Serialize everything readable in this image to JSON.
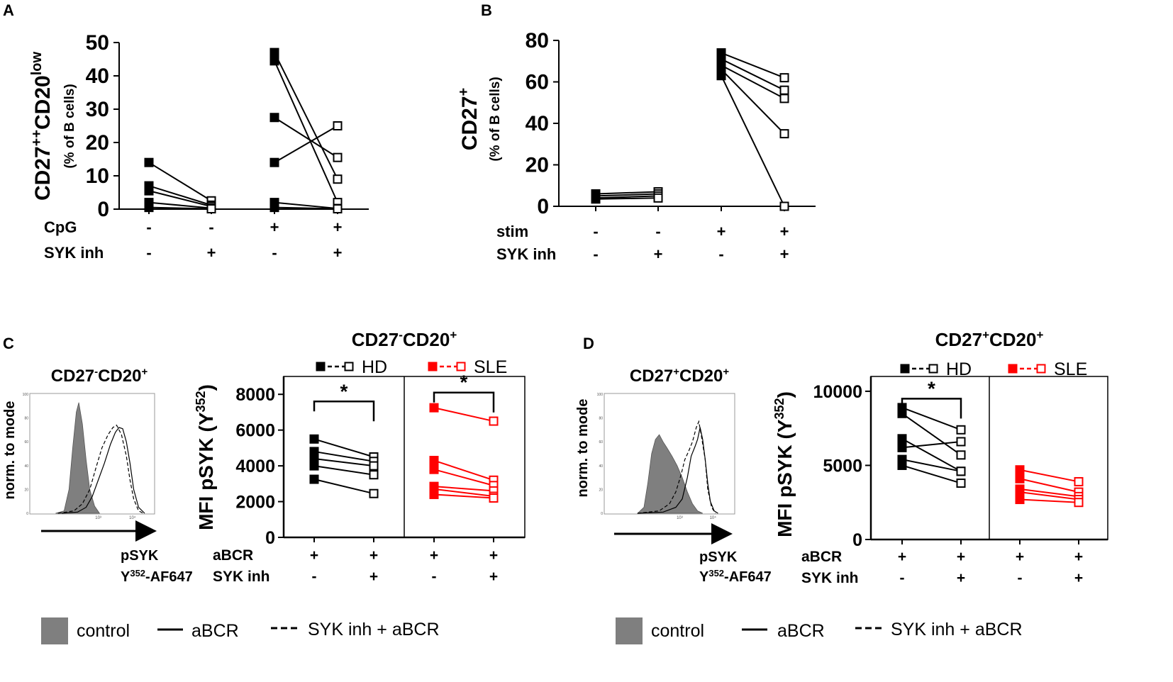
{
  "panels": {
    "A": {
      "letter": "A"
    },
    "B": {
      "letter": "B"
    },
    "C": {
      "letter": "C"
    },
    "D": {
      "letter": "D"
    }
  },
  "chart_data": [
    {
      "id": "A",
      "type": "scatter",
      "title": "",
      "ylabel_main": "CD27",
      "ylabel_sup1": "++",
      "ylabel_mid": "CD20",
      "ylabel_sup2": "low",
      "ylabel_sub": "(% of B cells)",
      "ylim": [
        0,
        50
      ],
      "yticks": [
        "0",
        "10",
        "20",
        "30",
        "40",
        "50"
      ],
      "conditions": [
        {
          "name": "CpG",
          "values": [
            "-",
            "-",
            "+",
            "+"
          ]
        },
        {
          "name": "SYK inh",
          "values": [
            "-",
            "+",
            "-",
            "+"
          ]
        }
      ],
      "pairs": [
        {
          "from_x": 0,
          "to_x": 1,
          "y": [
            14,
            2.5
          ]
        },
        {
          "from_x": 0,
          "to_x": 1,
          "y": [
            7,
            1.2
          ]
        },
        {
          "from_x": 0,
          "to_x": 1,
          "y": [
            5.5,
            0.8
          ]
        },
        {
          "from_x": 0,
          "to_x": 1,
          "y": [
            2,
            0.3
          ]
        },
        {
          "from_x": 0,
          "to_x": 1,
          "y": [
            0.5,
            0.1
          ]
        },
        {
          "from_x": 2,
          "to_x": 3,
          "y": [
            47,
            9
          ]
        },
        {
          "from_x": 2,
          "to_x": 3,
          "y": [
            44.5,
            2
          ]
        },
        {
          "from_x": 2,
          "to_x": 3,
          "y": [
            27.5,
            15.5
          ]
        },
        {
          "from_x": 2,
          "to_x": 3,
          "y": [
            14,
            25
          ]
        },
        {
          "from_x": 2,
          "to_x": 3,
          "y": [
            2,
            0.2
          ]
        },
        {
          "from_x": 2,
          "to_x": 3,
          "y": [
            0.5,
            0.1
          ]
        }
      ]
    },
    {
      "id": "B",
      "type": "scatter",
      "ylabel_main": "CD27",
      "ylabel_sup1": "+",
      "ylabel_sub": "(% of B cells)",
      "ylim": [
        0,
        80
      ],
      "yticks": [
        "0",
        "20",
        "40",
        "60",
        "80"
      ],
      "conditions": [
        {
          "name": "stim",
          "values": [
            "-",
            "-",
            "+",
            "+"
          ]
        },
        {
          "name": "SYK inh",
          "values": [
            "-",
            "+",
            "-",
            "+"
          ]
        }
      ],
      "pairs": [
        {
          "from_x": 0,
          "to_x": 1,
          "y": [
            6,
            7
          ]
        },
        {
          "from_x": 0,
          "to_x": 1,
          "y": [
            5,
            6
          ]
        },
        {
          "from_x": 0,
          "to_x": 1,
          "y": [
            4,
            5
          ]
        },
        {
          "from_x": 0,
          "to_x": 1,
          "y": [
            3.5,
            4
          ]
        },
        {
          "from_x": 2,
          "to_x": 3,
          "y": [
            74,
            62
          ]
        },
        {
          "from_x": 2,
          "to_x": 3,
          "y": [
            71,
            56
          ]
        },
        {
          "from_x": 2,
          "to_x": 3,
          "y": [
            68,
            52
          ]
        },
        {
          "from_x": 2,
          "to_x": 3,
          "y": [
            66,
            35
          ]
        },
        {
          "from_x": 2,
          "to_x": 3,
          "y": [
            63,
            0
          ]
        }
      ]
    },
    {
      "id": "C",
      "type": "scatter",
      "histogram_title_main": "CD27",
      "histogram_title_sup1": "-",
      "histogram_title_mid": "CD20",
      "histogram_title_sup2": "+",
      "histogram_ylabel": "norm. to mode",
      "histogram_xlabel_1": "pSYK",
      "histogram_xlabel_2a": "Y",
      "histogram_xlabel_2sup": "352",
      "histogram_xlabel_2b": "-AF647",
      "histogram_ticks": [
        "0",
        "20",
        "40",
        "60",
        "80",
        "100"
      ],
      "histogram_xticks": [
        "10³",
        "10⁴"
      ],
      "title_main": "CD27",
      "title_sup1": "-",
      "title_mid": "CD20",
      "title_sup2": "+",
      "ylabel_main": "MFI pSYK (Y",
      "ylabel_sup": "352",
      "ylabel_end": ")",
      "ylim": [
        0,
        9000
      ],
      "yticks": [
        "0",
        "2000",
        "4000",
        "6000",
        "8000"
      ],
      "legend": [
        "HD",
        "SLE"
      ],
      "significance": "*",
      "conditions": [
        {
          "name": "aBCR",
          "values": [
            "+",
            "+",
            "+",
            "+"
          ]
        },
        {
          "name": "SYK inh",
          "values": [
            "-",
            "+",
            "-",
            "+"
          ]
        }
      ],
      "series": [
        {
          "name": "HD",
          "color": "#000000",
          "pairs": [
            [
              5500,
              4500
            ],
            [
              4800,
              4250
            ],
            [
              4400,
              4000
            ],
            [
              4000,
              3500
            ],
            [
              3250,
              2450
            ]
          ]
        },
        {
          "name": "SLE",
          "color": "#ff0000",
          "pairs": [
            [
              7250,
              6500
            ],
            [
              4300,
              3200
            ],
            [
              3800,
              2900
            ],
            [
              2850,
              2600
            ],
            [
              2700,
              2300
            ],
            [
              2400,
              2200
            ]
          ]
        }
      ]
    },
    {
      "id": "D",
      "type": "scatter",
      "histogram_title_main": "CD27",
      "histogram_title_sup1": "+",
      "histogram_title_mid": "CD20",
      "histogram_title_sup2": "+",
      "histogram_ylabel": "norm. to mode",
      "histogram_xlabel_1": "pSYK",
      "histogram_xlabel_2a": "Y",
      "histogram_xlabel_2sup": "352",
      "histogram_xlabel_2b": "-AF647",
      "histogram_ticks": [
        "0",
        "20",
        "40",
        "60",
        "80",
        "100"
      ],
      "histogram_xticks": [
        "10³",
        "10⁴"
      ],
      "title_main": "CD27",
      "title_sup1": "+",
      "title_mid": "CD20",
      "title_sup2": "+",
      "ylabel_main": "MFI pSYK (Y",
      "ylabel_sup": "352",
      "ylabel_end": ")",
      "ylim": [
        0,
        11000
      ],
      "yticks": [
        "0",
        "5000",
        "10000"
      ],
      "legend": [
        "HD",
        "SLE"
      ],
      "significance": "*",
      "conditions": [
        {
          "name": "aBCR",
          "values": [
            "+",
            "+",
            "+",
            "+"
          ]
        },
        {
          "name": "SYK inh",
          "values": [
            "-",
            "+",
            "-",
            "+"
          ]
        }
      ],
      "series": [
        {
          "name": "HD",
          "color": "#000000",
          "pairs": [
            [
              8900,
              7400
            ],
            [
              8500,
              5700
            ],
            [
              6800,
              4600
            ],
            [
              6200,
              6600
            ],
            [
              5400,
              4600
            ],
            [
              5000,
              3800
            ]
          ]
        },
        {
          "name": "SLE",
          "color": "#ff0000",
          "pairs": [
            [
              4700,
              3900
            ],
            [
              4100,
              3200
            ],
            [
              3400,
              2900
            ],
            [
              3200,
              2700
            ],
            [
              2700,
              2500
            ]
          ]
        }
      ]
    }
  ],
  "legend_bottom": {
    "control": "control",
    "abcr": "aBCR",
    "syk_abcr": "SYK inh + aBCR"
  }
}
